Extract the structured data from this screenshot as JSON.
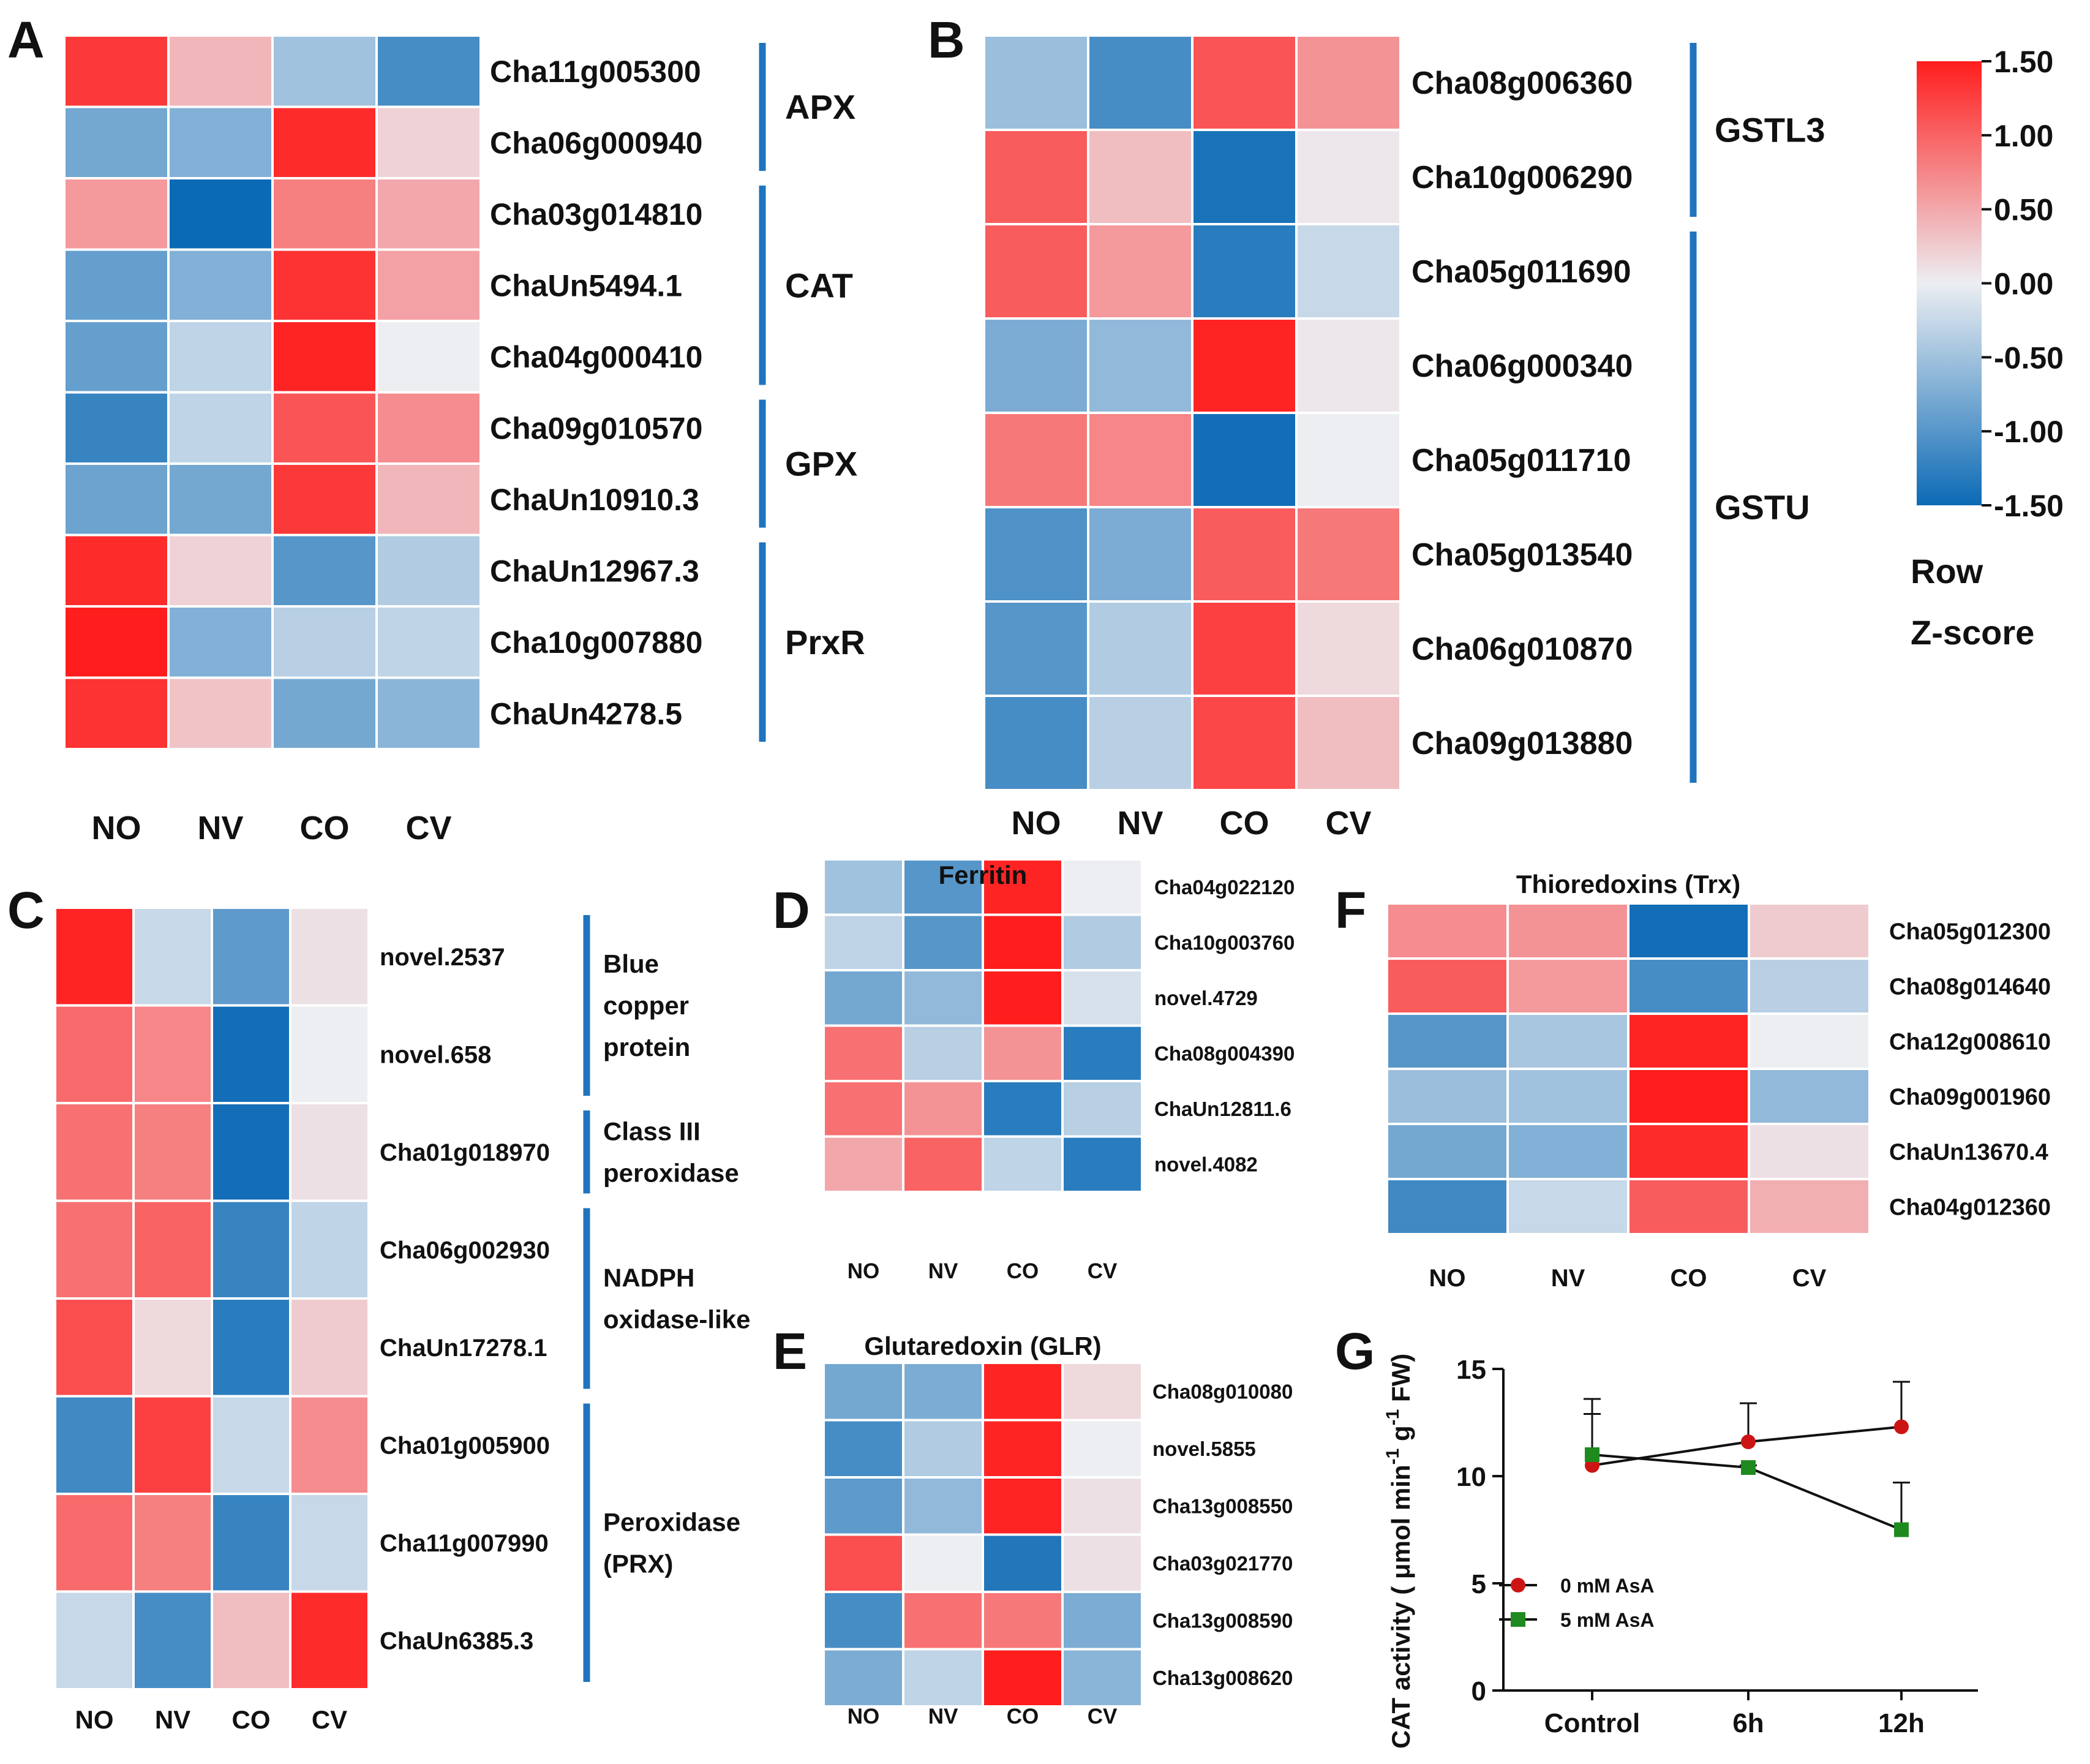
{
  "colors": {
    "low": "#0b6ab5",
    "mid": "#eceef2",
    "high": "#ff1d1d",
    "bracket": "#1f74bd",
    "series_0mM": "#cc1414",
    "series_5mM": "#1f8a1f",
    "axis": "#111111"
  },
  "columns": [
    "NO",
    "NV",
    "CO",
    "CV"
  ],
  "legend": {
    "ticks": [
      "1.50",
      "1.00",
      "0.50",
      "0.00",
      "-0.50",
      "-1.00",
      "-1.50"
    ],
    "title_line1": "Row",
    "title_line2": "Z-score"
  },
  "chart_data": [
    {
      "panel": "A",
      "type": "heatmap",
      "title": "",
      "columns": [
        "NO",
        "NV",
        "CO",
        "CV"
      ],
      "rows": [
        "Cha11g005300",
        "Cha06g000940",
        "Cha03g014810",
        "ChaUn5494.1",
        "Cha04g000410",
        "Cha09g010570",
        "ChaUn10910.3",
        "ChaUn12967.3",
        "Cha10g007880",
        "ChaUn4278.5"
      ],
      "values": [
        [
          1.3,
          0.4,
          -0.5,
          -1.1
        ],
        [
          -0.8,
          -0.7,
          1.4,
          0.2
        ],
        [
          0.6,
          -1.5,
          0.8,
          0.5
        ],
        [
          -0.9,
          -0.7,
          1.35,
          0.55
        ],
        [
          -0.9,
          -0.3,
          1.45,
          0.0
        ],
        [
          -1.2,
          -0.3,
          1.1,
          0.7
        ],
        [
          -0.85,
          -0.8,
          1.3,
          0.4
        ],
        [
          1.4,
          0.2,
          -1.0,
          -0.4
        ],
        [
          1.5,
          -0.7,
          -0.35,
          -0.3
        ],
        [
          1.35,
          0.3,
          -0.8,
          -0.65
        ]
      ],
      "groups": [
        {
          "label": "APX",
          "start": 0,
          "end": 1
        },
        {
          "label": "CAT",
          "start": 2,
          "end": 4
        },
        {
          "label": "GPX",
          "start": 5,
          "end": 6
        },
        {
          "label": "PrxR",
          "start": 7,
          "end": 9
        }
      ]
    },
    {
      "panel": "B",
      "type": "heatmap",
      "title": "",
      "columns": [
        "NO",
        "NV",
        "CO",
        "CV"
      ],
      "rows": [
        "Cha08g006360",
        "Cha10g006290",
        "Cha05g011690",
        "Cha06g000340",
        "Cha05g011710",
        "Cha05g013540",
        "Cha06g010870",
        "Cha09g013880"
      ],
      "values": [
        [
          -0.55,
          -1.1,
          1.1,
          0.65
        ],
        [
          1.05,
          0.35,
          -1.4,
          0.05
        ],
        [
          1.05,
          0.6,
          -1.3,
          -0.25
        ],
        [
          -0.75,
          -0.6,
          1.45,
          0.05
        ],
        [
          0.85,
          0.75,
          -1.45,
          0.0
        ],
        [
          -1.05,
          -0.75,
          1.05,
          0.85
        ],
        [
          -1.0,
          -0.4,
          1.25,
          0.15
        ],
        [
          -1.1,
          -0.35,
          1.2,
          0.35
        ]
      ],
      "groups": [
        {
          "label": "GSTL3",
          "start": 0,
          "end": 1
        },
        {
          "label": "GSTU",
          "start": 2,
          "end": 7
        }
      ]
    },
    {
      "panel": "C",
      "type": "heatmap",
      "title": "",
      "columns": [
        "NO",
        "NV",
        "CO",
        "CV"
      ],
      "rows": [
        "novel.2537",
        "novel.658",
        "Cha01g018970",
        "Cha06g002930",
        "ChaUn17278.1",
        "Cha01g005900",
        "Cha11g007990",
        "ChaUn6385.3"
      ],
      "values": [
        [
          1.45,
          -0.25,
          -0.95,
          0.1
        ],
        [
          0.95,
          0.75,
          -1.45,
          0.0
        ],
        [
          0.9,
          0.8,
          -1.45,
          0.1
        ],
        [
          0.9,
          1.0,
          -1.2,
          -0.3
        ],
        [
          1.15,
          0.15,
          -1.3,
          0.25
        ],
        [
          -1.15,
          1.25,
          -0.25,
          0.7
        ],
        [
          0.95,
          0.8,
          -1.2,
          -0.25
        ],
        [
          -0.25,
          -1.1,
          0.35,
          1.4
        ]
      ],
      "groups": [
        {
          "label": "Blue copper protein",
          "lines": [
            "Blue",
            "copper",
            "protein"
          ],
          "start": 0,
          "end": 1
        },
        {
          "label": "Class III peroxidase",
          "lines": [
            "Class III",
            "peroxidase"
          ],
          "start": 2,
          "end": 2
        },
        {
          "label": "NADPH oxidase-like",
          "lines": [
            "NADPH",
            "oxidase-like"
          ],
          "start": 3,
          "end": 4
        },
        {
          "label": "Peroxidase (PRX)",
          "lines": [
            "Peroxidase",
            "(PRX)"
          ],
          "start": 5,
          "end": 7
        }
      ]
    },
    {
      "panel": "D",
      "type": "heatmap",
      "title": "Ferritin",
      "columns": [
        "NO",
        "NV",
        "CO",
        "CV"
      ],
      "rows": [
        "Cha04g022120",
        "Cha10g003760",
        "novel.4729",
        "Cha08g004390",
        "ChaUn12811.6",
        "novel.4082"
      ],
      "values": [
        [
          -0.5,
          -1.0,
          1.45,
          0.0
        ],
        [
          -0.3,
          -1.0,
          1.5,
          -0.4
        ],
        [
          -0.8,
          -0.6,
          1.5,
          -0.15
        ],
        [
          0.9,
          -0.35,
          0.65,
          -1.3
        ],
        [
          0.9,
          0.65,
          -1.3,
          -0.35
        ],
        [
          0.5,
          1.0,
          -0.3,
          -1.3
        ]
      ],
      "groups": []
    },
    {
      "panel": "E",
      "type": "heatmap",
      "title": "Glutaredoxin (GLR)",
      "columns": [
        "NO",
        "NV",
        "CO",
        "CV"
      ],
      "rows": [
        "Cha08g010080",
        "novel.5855",
        "Cha13g008550",
        "Cha03g021770",
        "Cha13g008590",
        "Cha13g008620"
      ],
      "values": [
        [
          -0.8,
          -0.75,
          1.45,
          0.15
        ],
        [
          -1.1,
          -0.4,
          1.45,
          0.0
        ],
        [
          -0.95,
          -0.6,
          1.45,
          0.1
        ],
        [
          1.15,
          0.0,
          -1.35,
          0.1
        ],
        [
          -1.1,
          0.9,
          0.85,
          -0.75
        ],
        [
          -0.75,
          -0.3,
          1.5,
          -0.65
        ]
      ],
      "groups": []
    },
    {
      "panel": "F",
      "type": "heatmap",
      "title": "Thioredoxins  (Trx)",
      "columns": [
        "NO",
        "NV",
        "CO",
        "CV"
      ],
      "rows": [
        "Cha05g012300",
        "Cha08g014640",
        "Cha12g008610",
        "Cha09g001960",
        "ChaUn13670.4",
        "Cha04g012360"
      ],
      "values": [
        [
          0.7,
          0.65,
          -1.45,
          0.25
        ],
        [
          1.05,
          0.6,
          -1.1,
          -0.35
        ],
        [
          -1.0,
          -0.45,
          1.45,
          0.0
        ],
        [
          -0.55,
          -0.5,
          1.5,
          -0.6
        ],
        [
          -0.8,
          -0.7,
          1.4,
          0.1
        ],
        [
          -1.15,
          -0.25,
          1.05,
          0.45
        ]
      ],
      "groups": []
    },
    {
      "panel": "G",
      "type": "line",
      "title": "",
      "categories": [
        "Control",
        "6h",
        "12h"
      ],
      "ylabel_main": "CAT activity ( μmol min",
      "ylabel_sup1": "-1",
      "ylabel_mid": " g",
      "ylabel_sup2": "-1",
      "ylabel_end": " FW)",
      "ylim": [
        0,
        15
      ],
      "yticks": [
        0,
        5,
        10,
        15
      ],
      "series": [
        {
          "name": "0 mM AsA",
          "values": [
            10.5,
            11.6,
            12.3
          ],
          "errors": [
            2.4,
            1.8,
            2.1
          ],
          "marker": "circle"
        },
        {
          "name": "5 mM AsA",
          "values": [
            11.0,
            10.4,
            7.5
          ],
          "errors": [
            2.6,
            0.1,
            2.2
          ],
          "marker": "square"
        }
      ]
    }
  ]
}
